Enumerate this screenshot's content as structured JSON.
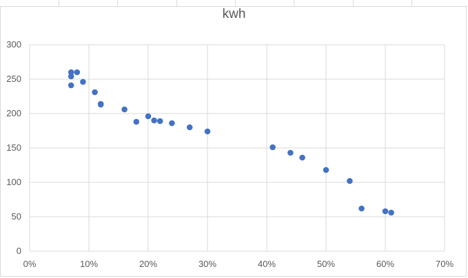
{
  "chart_data": {
    "type": "scatter",
    "title": "kwh",
    "xlabel": "",
    "ylabel": "",
    "xlim": [
      0,
      0.7
    ],
    "ylim": [
      0,
      300
    ],
    "x_ticks": [
      0,
      0.1,
      0.2,
      0.3,
      0.4,
      0.5,
      0.6,
      0.7
    ],
    "x_tick_labels": [
      "0%",
      "10%",
      "20%",
      "30%",
      "40%",
      "50%",
      "60%",
      "70%"
    ],
    "y_ticks": [
      0,
      50,
      100,
      150,
      200,
      250,
      300
    ],
    "y_tick_labels": [
      "0",
      "50",
      "100",
      "150",
      "200",
      "250",
      "300"
    ],
    "grid": true,
    "legend": "none",
    "marker_color": "#4472c4",
    "series": [
      {
        "points": [
          [
            0.07,
            260
          ],
          [
            0.07,
            254
          ],
          [
            0.07,
            241
          ],
          [
            0.08,
            260
          ],
          [
            0.09,
            246
          ],
          [
            0.11,
            231
          ],
          [
            0.12,
            214
          ],
          [
            0.12,
            213
          ],
          [
            0.16,
            206
          ],
          [
            0.18,
            188
          ],
          [
            0.2,
            196
          ],
          [
            0.21,
            190
          ],
          [
            0.22,
            189
          ],
          [
            0.24,
            186
          ],
          [
            0.27,
            180
          ],
          [
            0.3,
            174
          ],
          [
            0.41,
            151
          ],
          [
            0.44,
            143
          ],
          [
            0.46,
            136
          ],
          [
            0.5,
            118
          ],
          [
            0.54,
            102
          ],
          [
            0.56,
            62
          ],
          [
            0.6,
            58
          ],
          [
            0.61,
            56
          ]
        ]
      }
    ]
  }
}
